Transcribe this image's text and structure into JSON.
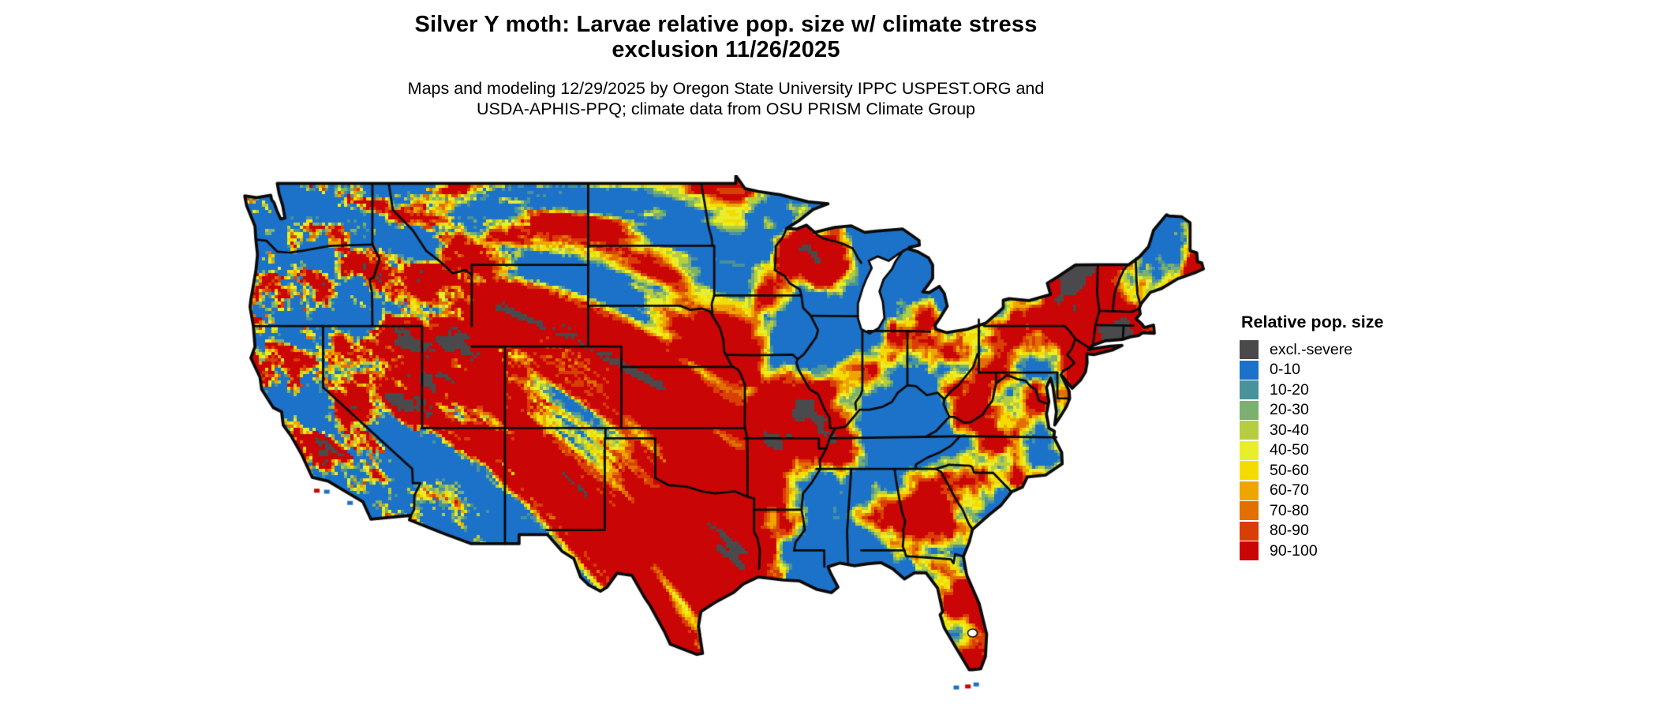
{
  "title": {
    "line1": "Silver Y moth: Larvae relative pop. size w/ climate stress",
    "line2": "exclusion 11/26/2025"
  },
  "subtitle": {
    "line1": "Maps and modeling 12/29/2025 by Oregon State University IPPC USPEST.ORG and",
    "line2": "USDA-APHIS-PPQ; climate data from OSU PRISM Climate Group"
  },
  "legend": {
    "title": "Relative pop. size",
    "items": [
      {
        "label": "excl.-severe",
        "color": "#4a4a4c"
      },
      {
        "label": "0-10",
        "color": "#1b72c8"
      },
      {
        "label": "10-20",
        "color": "#4a929b"
      },
      {
        "label": "20-30",
        "color": "#7bb06e"
      },
      {
        "label": "30-40",
        "color": "#b6cd3f"
      },
      {
        "label": "40-50",
        "color": "#e9ee2c"
      },
      {
        "label": "50-60",
        "color": "#f5dc00"
      },
      {
        "label": "60-70",
        "color": "#efa500"
      },
      {
        "label": "70-80",
        "color": "#e17000"
      },
      {
        "label": "80-90",
        "color": "#d93e04"
      },
      {
        "label": "90-100",
        "color": "#c90505"
      }
    ]
  },
  "map": {
    "border_color": "#0a0a0a",
    "background_color": "#ffffff"
  }
}
